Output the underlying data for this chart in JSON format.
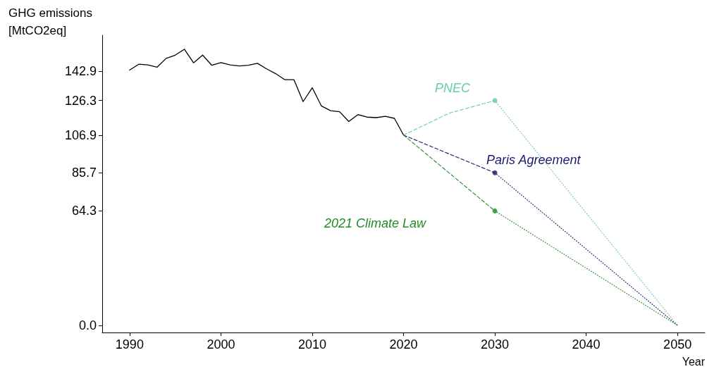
{
  "chart_data": {
    "type": "line",
    "xlabel": "Year",
    "ylabel": "GHG emissions\n[MtCO2eq]",
    "xlim": [
      1987,
      2053
    ],
    "xticks": [
      1990,
      2000,
      2010,
      2020,
      2030,
      2040,
      2050
    ],
    "ylim": [
      -4,
      163
    ],
    "yticks": [
      {
        "value": 0,
        "label": "0.0"
      },
      64.3,
      85.7,
      106.9,
      126.3,
      142.9
    ],
    "grid": false,
    "legend": false,
    "series": [
      {
        "color": "#000000",
        "line_style": "solid",
        "marker": "none",
        "x": [
          1990,
          1991,
          1992,
          1993,
          1994,
          1995,
          1996,
          1997,
          1998,
          1999,
          2000,
          2001,
          2002,
          2003,
          2004,
          2005,
          2006,
          2007,
          2008,
          2009,
          2010,
          2011,
          2012,
          2013,
          2014,
          2015,
          2016,
          2017,
          2018,
          2019,
          2020
        ],
        "values": [
          143.4,
          146.7,
          146.3,
          145.0,
          150.0,
          151.8,
          155.1,
          147.5,
          151.8,
          146.1,
          147.6,
          146.3,
          145.7,
          146.1,
          147.2,
          144.1,
          141.4,
          138.0,
          138.0,
          125.7,
          133.5,
          123.3,
          120.6,
          120.0,
          114.5,
          118.4,
          117.0,
          116.7,
          117.4,
          116.3,
          106.9
        ]
      },
      {
        "name": "PNEC",
        "color": "#66cdaa",
        "line_style": "dashed",
        "marker": "none",
        "x": [
          2020,
          2025,
          2030
        ],
        "values": [
          106.9,
          119.2,
          126.3
        ]
      },
      {
        "name": "Paris Agreement",
        "color": "#191970",
        "line_style": "dashed",
        "marker": "none",
        "x": [
          2020,
          2030
        ],
        "values": [
          106.9,
          85.7
        ]
      },
      {
        "name": "2021 Climate Law",
        "color": "#228b22",
        "line_style": "dashed",
        "marker": "none",
        "x": [
          2020,
          2030
        ],
        "values": [
          106.9,
          64.3
        ]
      },
      {
        "color": "#66cdaa",
        "line_style": "dotted",
        "marker": "none",
        "x": [
          2030,
          2050
        ],
        "values": [
          126.3,
          0
        ]
      },
      {
        "color": "#191970",
        "line_style": "dotted",
        "marker": "none",
        "x": [
          2030,
          2050
        ],
        "values": [
          85.7,
          0
        ]
      },
      {
        "color": "#228b22",
        "line_style": "dotted",
        "marker": "none",
        "x": [
          2030,
          2050
        ],
        "values": [
          64.3,
          0
        ]
      },
      {
        "type": "scatter",
        "color": "#66cdaa",
        "marker": "circle",
        "x": [
          2030
        ],
        "values": [
          126.3
        ]
      },
      {
        "type": "scatter",
        "color": "#191970",
        "marker": "circle",
        "x": [
          2030
        ],
        "values": [
          85.7
        ]
      },
      {
        "type": "scatter",
        "color": "#228b22",
        "marker": "circle",
        "x": [
          2030
        ],
        "values": [
          64.3
        ]
      }
    ]
  }
}
